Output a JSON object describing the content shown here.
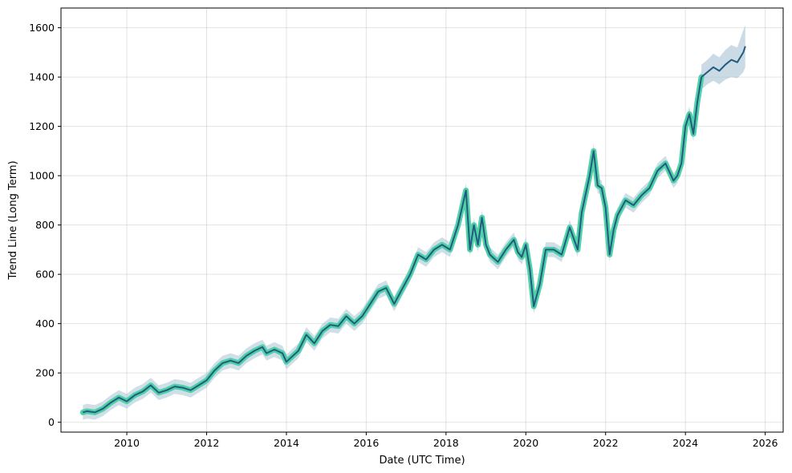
{
  "chart_data": {
    "type": "line",
    "title": "",
    "xlabel": "Date (UTC Time)",
    "ylabel": "Trend Line (Long Term)",
    "xlim": [
      2008.35,
      2026.45
    ],
    "ylim": [
      -40,
      1680
    ],
    "xticks": [
      2010,
      2012,
      2014,
      2016,
      2018,
      2020,
      2022,
      2024,
      2026
    ],
    "xtick_labels": [
      "2010",
      "2012",
      "2014",
      "2016",
      "2018",
      "2020",
      "2022",
      "2024",
      "2026"
    ],
    "yticks": [
      0,
      200,
      400,
      600,
      800,
      1000,
      1200,
      1400,
      1600
    ],
    "ytick_labels": [
      "0",
      "200",
      "400",
      "600",
      "800",
      "1000",
      "1200",
      "1400",
      "1600"
    ],
    "grid": true,
    "colors": {
      "history_highlight": "#4fd1a8",
      "trend_line": "#235a80",
      "confidence_band": "#a9c3d6"
    },
    "series": [
      {
        "role": "historical trend",
        "x": [
          2008.9,
          2009.0,
          2009.2,
          2009.4,
          2009.6,
          2009.8,
          2010.0,
          2010.2,
          2010.4,
          2010.6,
          2010.8,
          2011.0,
          2011.2,
          2011.4,
          2011.6,
          2011.8,
          2012.0,
          2012.2,
          2012.4,
          2012.6,
          2012.8,
          2013.0,
          2013.2,
          2013.4,
          2013.5,
          2013.7,
          2013.9,
          2014.0,
          2014.1,
          2014.3,
          2014.5,
          2014.7,
          2014.9,
          2015.1,
          2015.3,
          2015.5,
          2015.7,
          2015.9,
          2016.1,
          2016.3,
          2016.5,
          2016.7,
          2016.9,
          2017.1,
          2017.3,
          2017.5,
          2017.7,
          2017.9,
          2018.1,
          2018.3,
          2018.5,
          2018.6,
          2018.7,
          2018.8,
          2018.9,
          2019.0,
          2019.1,
          2019.3,
          2019.5,
          2019.7,
          2019.8,
          2019.9,
          2020.0,
          2020.1,
          2020.2,
          2020.35,
          2020.5,
          2020.7,
          2020.9,
          2021.1,
          2021.3,
          2021.4,
          2021.6,
          2021.7,
          2021.8,
          2021.9,
          2022.0,
          2022.1,
          2022.2,
          2022.3,
          2022.5,
          2022.7,
          2022.9,
          2023.1,
          2023.3,
          2023.5,
          2023.7,
          2023.8,
          2023.9,
          2024.0,
          2024.1,
          2024.2,
          2024.3,
          2024.4
        ],
        "y": [
          40,
          45,
          40,
          55,
          80,
          100,
          85,
          110,
          125,
          150,
          120,
          130,
          145,
          140,
          130,
          150,
          170,
          210,
          240,
          250,
          240,
          270,
          290,
          305,
          280,
          295,
          280,
          245,
          260,
          290,
          355,
          320,
          370,
          395,
          390,
          430,
          400,
          430,
          480,
          530,
          545,
          480,
          540,
          600,
          680,
          660,
          700,
          720,
          700,
          800,
          940,
          700,
          800,
          720,
          830,
          720,
          680,
          650,
          700,
          740,
          690,
          670,
          720,
          620,
          470,
          560,
          700,
          700,
          680,
          790,
          700,
          850,
          1000,
          1100,
          960,
          950,
          870,
          680,
          780,
          840,
          900,
          880,
          920,
          950,
          1020,
          1050,
          980,
          1000,
          1050,
          1200,
          1250,
          1170,
          1300,
          1400
        ]
      },
      {
        "role": "forecast",
        "x": [
          2024.4,
          2024.55,
          2024.7,
          2024.85,
          2025.0,
          2025.15,
          2025.3,
          2025.45,
          2025.5
        ],
        "y": [
          1400,
          1420,
          1440,
          1425,
          1450,
          1470,
          1460,
          1500,
          1525
        ],
        "upper": [
          1450,
          1470,
          1495,
          1480,
          1510,
          1530,
          1520,
          1590,
          1610
        ],
        "lower": [
          1350,
          1370,
          1385,
          1370,
          1390,
          1400,
          1395,
          1420,
          1440
        ]
      }
    ]
  }
}
